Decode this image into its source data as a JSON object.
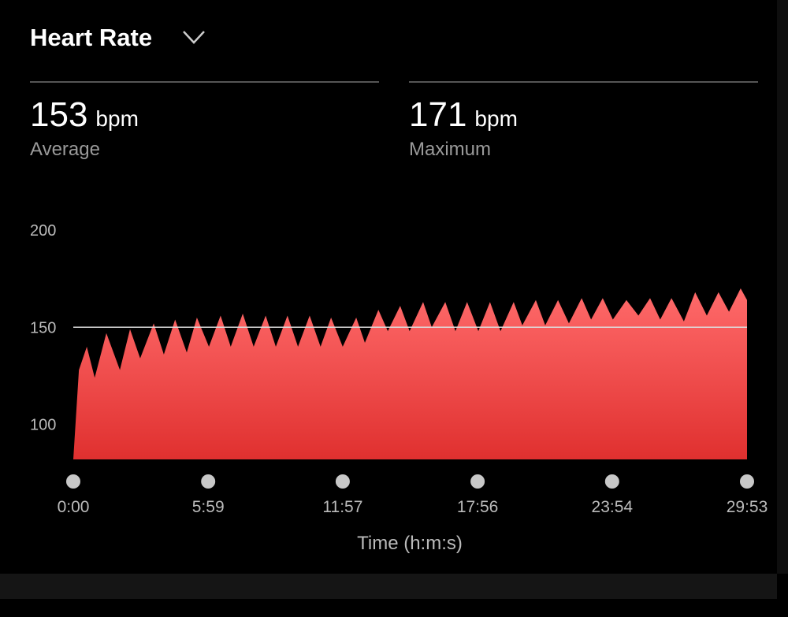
{
  "header": {
    "title": "Heart Rate"
  },
  "stats": [
    {
      "value": "153",
      "unit": "bpm",
      "label": "Average"
    },
    {
      "value": "171",
      "unit": "bpm",
      "label": "Maximum"
    }
  ],
  "chart_data": {
    "type": "area",
    "x_label": "Time (h:m:s)",
    "color_top": "#ff6b6b",
    "color_bottom": "#e0302f",
    "highlight_y": 150,
    "xlim": [
      0,
      1793
    ],
    "ylim": [
      82,
      200
    ],
    "xticks": [
      {
        "value": 0,
        "label": "0:00"
      },
      {
        "value": 359,
        "label": "5:59"
      },
      {
        "value": 717,
        "label": "11:57"
      },
      {
        "value": 1076,
        "label": "17:56"
      },
      {
        "value": 1434,
        "label": "23:54"
      },
      {
        "value": 1793,
        "label": "29:53"
      }
    ],
    "yticks": [
      100,
      150,
      200
    ],
    "x": [
      0,
      15,
      36,
      57,
      88,
      124,
      151,
      178,
      214,
      241,
      271,
      302,
      329,
      361,
      392,
      419,
      451,
      480,
      512,
      539,
      570,
      598,
      629,
      658,
      686,
      717,
      753,
      776,
      812,
      837,
      870,
      895,
      931,
      954,
      990,
      1017,
      1048,
      1078,
      1109,
      1137,
      1172,
      1195,
      1231,
      1256,
      1290,
      1319,
      1353,
      1378,
      1409,
      1436,
      1472,
      1504,
      1535,
      1562,
      1592,
      1625,
      1655,
      1686,
      1717,
      1745,
      1776,
      1793
    ],
    "values": [
      82,
      128,
      140,
      124,
      147,
      128,
      149,
      134,
      152,
      136,
      154,
      137,
      155,
      140,
      156,
      140,
      157,
      140,
      156,
      140,
      156,
      140,
      156,
      140,
      155,
      140,
      155,
      142,
      159,
      148,
      161,
      148,
      163,
      150,
      163,
      148,
      163,
      148,
      163,
      148,
      163,
      151,
      164,
      151,
      164,
      152,
      165,
      154,
      165,
      154,
      164,
      156,
      165,
      154,
      165,
      153,
      168,
      156,
      168,
      158,
      170,
      164
    ]
  }
}
